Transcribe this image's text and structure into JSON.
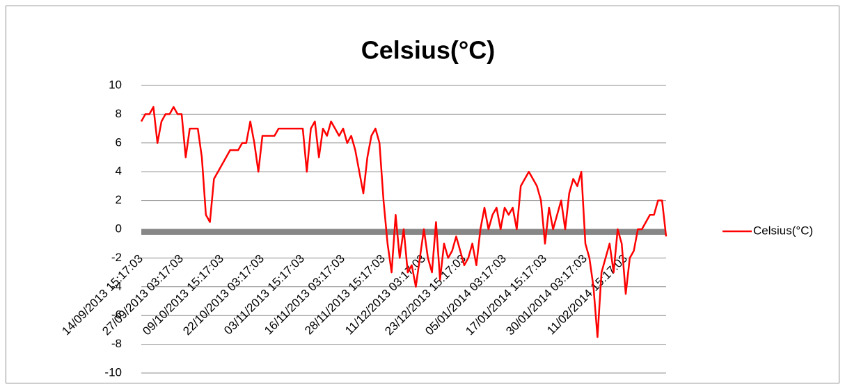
{
  "chart_data": {
    "type": "line",
    "title": "Celsius(°C)",
    "categories": [
      "14/09/2013 15:17:03",
      null,
      null,
      null,
      null,
      null,
      null,
      null,
      null,
      null,
      "27/09/2013 03:17:03",
      null,
      null,
      null,
      null,
      null,
      null,
      null,
      null,
      null,
      "09/10/2013 15:17:03",
      null,
      null,
      null,
      null,
      null,
      null,
      null,
      null,
      null,
      "22/10/2013 03:17:03",
      null,
      null,
      null,
      null,
      null,
      null,
      null,
      null,
      null,
      "03/11/2013 15:17:03",
      null,
      null,
      null,
      null,
      null,
      null,
      null,
      null,
      null,
      "16/11/2013 03:17:03",
      null,
      null,
      null,
      null,
      null,
      null,
      null,
      null,
      null,
      "28/11/2013 15:17:03",
      null,
      null,
      null,
      null,
      null,
      null,
      null,
      null,
      null,
      "11/12/2013 03:17:03",
      null,
      null,
      null,
      null,
      null,
      null,
      null,
      null,
      null,
      "23/12/2013 15:17:03",
      null,
      null,
      null,
      null,
      null,
      null,
      null,
      null,
      null,
      "05/01/2014 03:17:03",
      null,
      null,
      null,
      null,
      null,
      null,
      null,
      null,
      null,
      "17/01/2014 15:17:03",
      null,
      null,
      null,
      null,
      null,
      null,
      null,
      null,
      null,
      "30/01/2014 03:17:03",
      null,
      null,
      null,
      null,
      null,
      null,
      null,
      null,
      null,
      "11/02/2014 15:17:03",
      null,
      null,
      null,
      null,
      null,
      null,
      null,
      null,
      null,
      null
    ],
    "series": [
      {
        "name": "Celsius(°C)",
        "color": "#ff0000",
        "values": [
          7.5,
          8,
          8,
          8.5,
          6,
          7.5,
          8,
          8,
          8.5,
          8,
          8,
          5,
          7,
          7,
          7,
          5,
          1,
          0.5,
          3.5,
          4,
          4.5,
          5,
          5.5,
          5.5,
          5.5,
          6,
          6,
          7.5,
          6,
          4,
          6.5,
          6.5,
          6.5,
          6.5,
          7,
          7,
          7,
          7,
          7,
          7,
          7,
          4,
          7,
          7.5,
          5,
          7,
          6.5,
          7.5,
          7,
          6.5,
          7,
          6,
          6.5,
          5.5,
          4,
          2.5,
          5,
          6.5,
          7,
          6,
          2,
          -1,
          -3,
          1,
          -2,
          0,
          -3,
          -2.5,
          -4,
          -2,
          0,
          -2,
          -3,
          0.5,
          -3.5,
          -1,
          -2,
          -1.5,
          -0.5,
          -1.5,
          -2.5,
          -2,
          -1,
          -2.5,
          0,
          1.5,
          0,
          1,
          1.5,
          0,
          1.5,
          1,
          1.5,
          0,
          3,
          3.5,
          4,
          3.5,
          3,
          2,
          -1,
          1.5,
          0,
          1,
          2,
          0,
          2.5,
          3.5,
          3,
          4,
          -1,
          -2,
          -4,
          -7.5,
          -3,
          -2,
          -1,
          -3,
          0,
          -1,
          -4.5,
          -2,
          -1.5,
          0,
          0,
          0.5,
          1,
          1,
          2,
          2,
          -0.5
        ]
      }
    ],
    "ylim": [
      -10,
      10
    ],
    "yticks": [
      -10,
      -8,
      -6,
      -4,
      -2,
      0,
      2,
      4,
      6,
      8,
      10
    ],
    "grid": true,
    "legend": "right"
  }
}
